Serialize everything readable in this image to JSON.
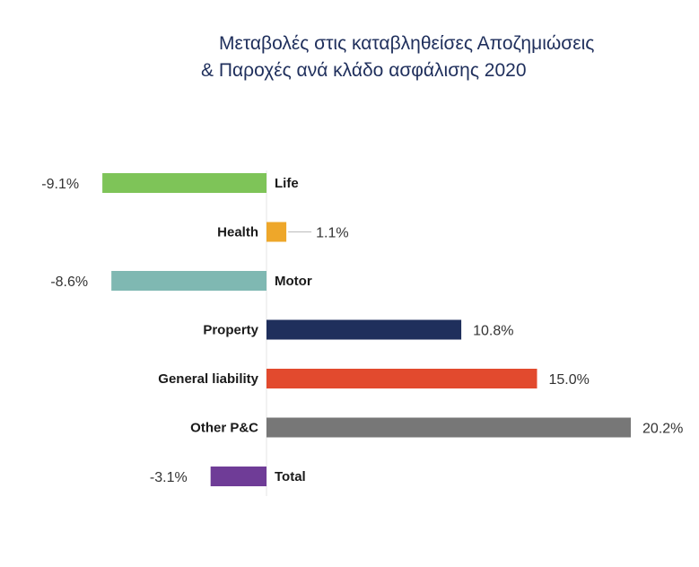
{
  "chart_data": {
    "type": "bar",
    "orientation": "horizontal",
    "title_line1": "Μεταβολές στις καταβληθείσες Αποζημιώσεις",
    "title_line2": "& Παροχές ανά κλάδο ασφάλισης 2020",
    "categories": [
      "Life",
      "Health",
      "Motor",
      "Property",
      "General liability",
      "Other P&C",
      "Total"
    ],
    "values": [
      -9.1,
      1.1,
      -8.6,
      10.8,
      15.0,
      20.2,
      -3.1
    ],
    "value_labels": [
      "-9.1%",
      "1.1%",
      "-8.6%",
      "10.8%",
      "15.0%",
      "20.2%",
      "-3.1%"
    ],
    "colors": [
      "#7ec458",
      "#eea72a",
      "#7fb8b2",
      "#1f2f5c",
      "#e24a2e",
      "#777777",
      "#6f3c97"
    ],
    "unit": "%",
    "grid": false,
    "legend": "none"
  }
}
